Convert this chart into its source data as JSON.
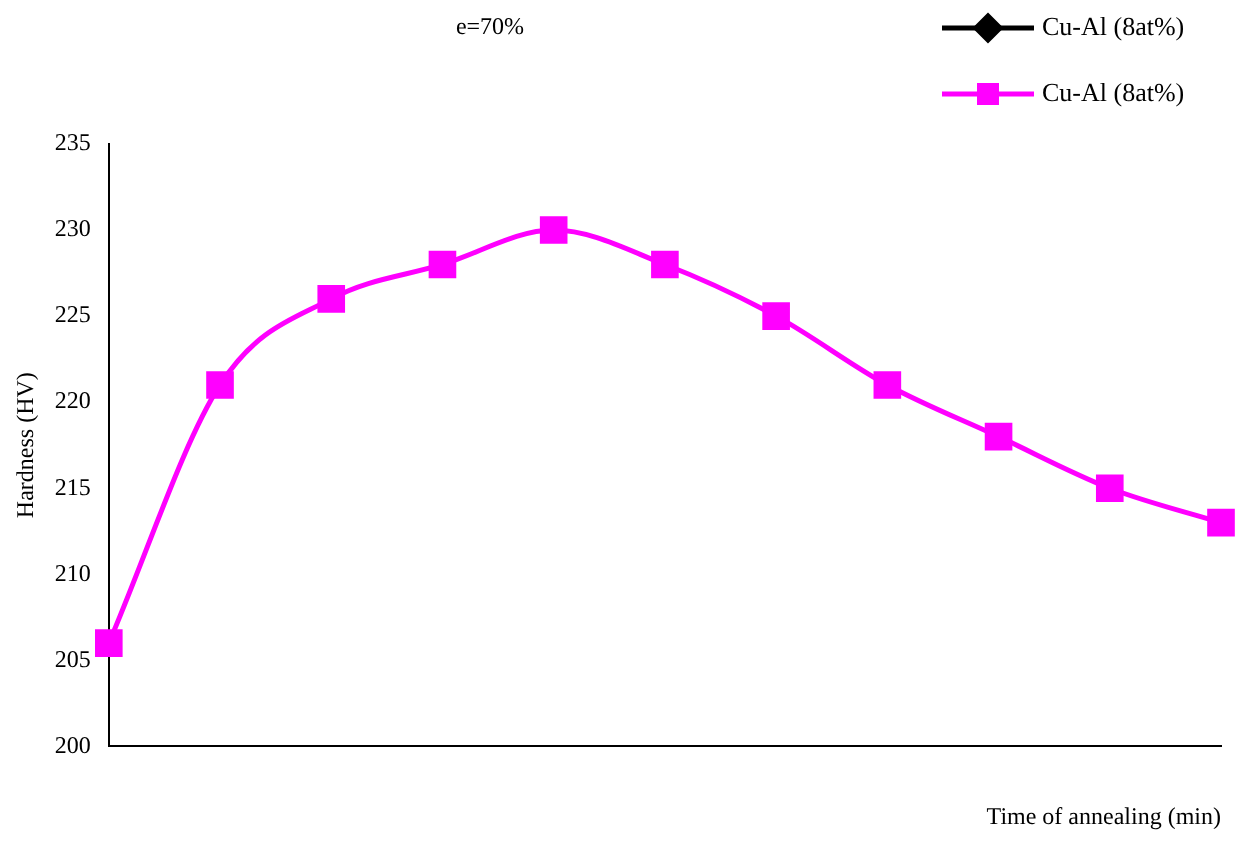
{
  "chart_data": {
    "type": "line",
    "annotations": [
      "e=70%"
    ],
    "xlabel": "Time of annealing (min)",
    "ylabel": "Hardness (HV)",
    "categories": [
      null,
      null,
      null,
      null,
      null,
      null,
      null,
      null,
      null,
      null,
      null
    ],
    "series": [
      {
        "name": "Cu-Al (8at%)",
        "color": "#000000",
        "marker": "diamond",
        "values": [
          null,
          null,
          null,
          null,
          null,
          null,
          null,
          null,
          null,
          null,
          null
        ]
      },
      {
        "name": "Cu-Al (8at%)",
        "color": "#ff00ff",
        "marker": "square",
        "values": [
          206,
          221,
          226,
          228,
          230,
          228,
          225,
          221,
          218,
          215,
          213
        ]
      }
    ],
    "ylim": [
      200,
      235
    ],
    "yticks": [
      200,
      205,
      210,
      215,
      220,
      225,
      230,
      235
    ],
    "tick_labels": "y",
    "grid": false,
    "legend": "top right",
    "line_style": "solid"
  }
}
